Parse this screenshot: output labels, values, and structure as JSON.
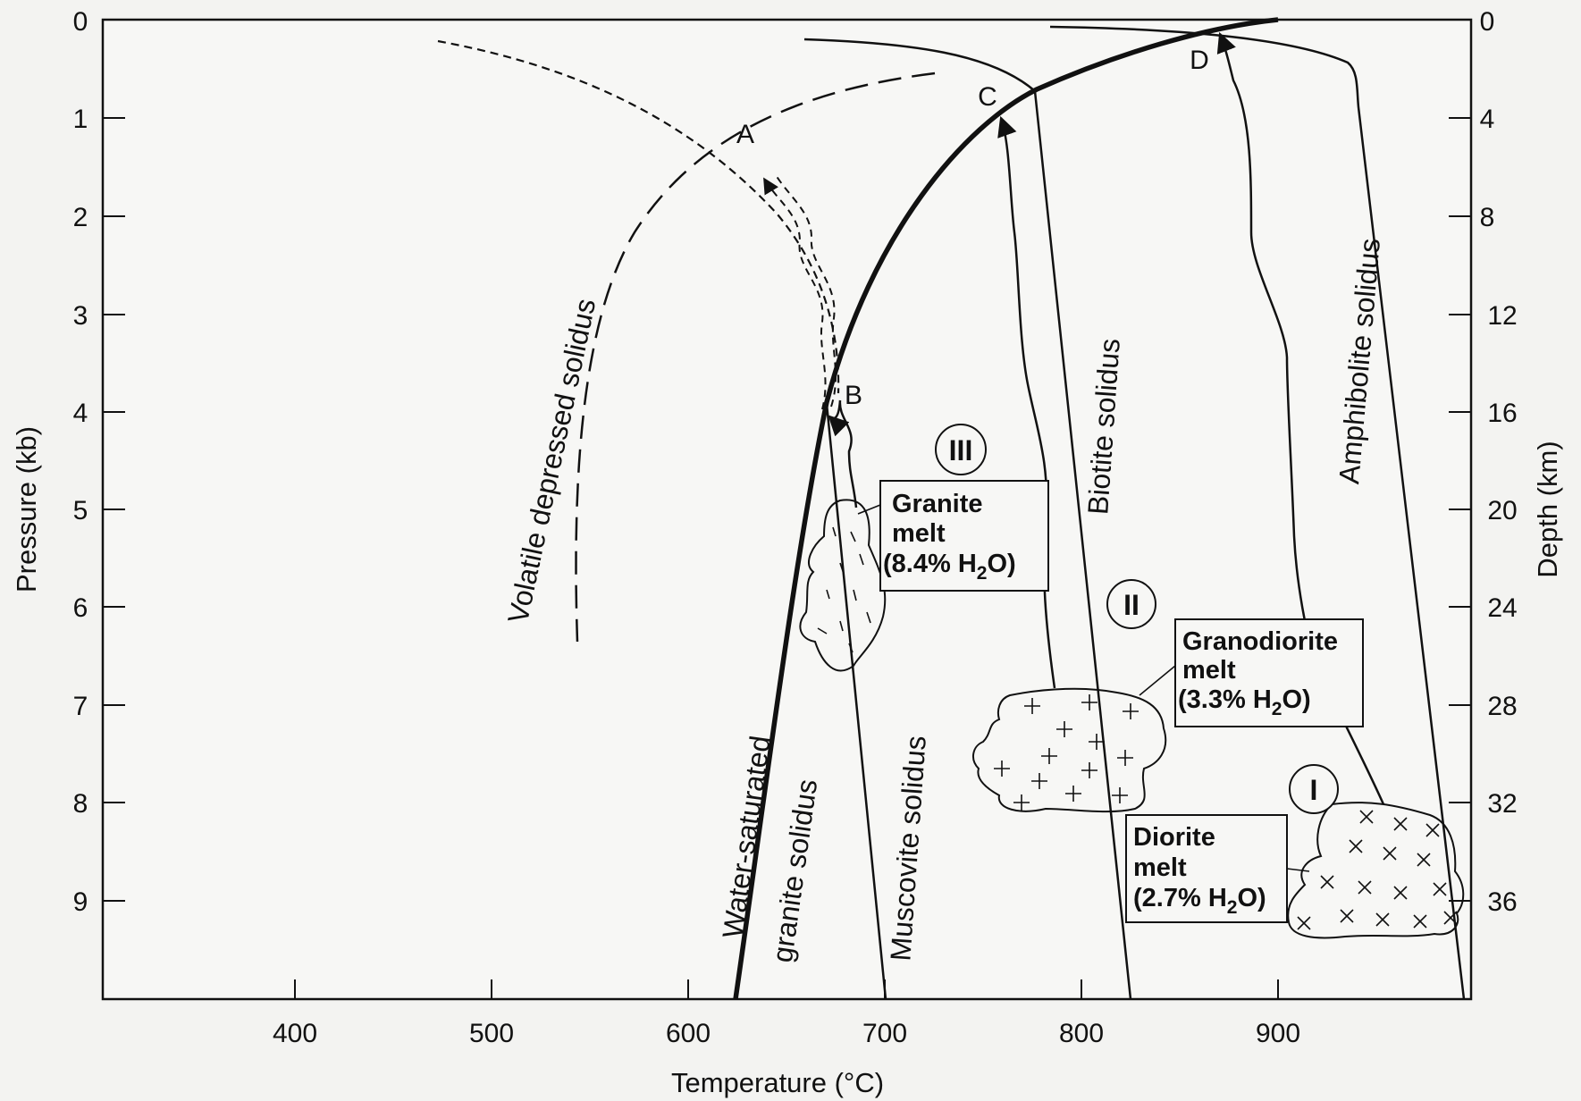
{
  "axes": {
    "xlabel": "Temperature (°C)",
    "ylabel_left": "Pressure (kb)",
    "ylabel_right": "Depth (km)",
    "x_ticks": [
      "400",
      "500",
      "600",
      "700",
      "800",
      "900"
    ],
    "y_left_ticks": [
      "0",
      "1",
      "2",
      "3",
      "4",
      "5",
      "6",
      "7",
      "8",
      "9"
    ],
    "y_right_ticks": [
      "0",
      "4",
      "8",
      "12",
      "16",
      "20",
      "24",
      "28",
      "32",
      "36"
    ]
  },
  "curve_labels": {
    "volatile_depressed": "Volatile depressed solidus",
    "water_saturated_1": "Water-saturated",
    "water_saturated_2": "granite solidus",
    "muscovite": "Muscovite solidus",
    "biotite": "Biotite solidus",
    "amphibolite": "Amphibolite solidus"
  },
  "points": {
    "a": "A",
    "b": "B",
    "c": "C",
    "d": "D"
  },
  "magmas": {
    "granite": {
      "roman": "III",
      "name": "Granite",
      "line2": "melt",
      "water_prefix": "(8.4% H",
      "water_sub": "2",
      "water_suffix": "O)"
    },
    "granodiorite": {
      "roman": "II",
      "name": "Granodiorite",
      "line2": "melt",
      "water_prefix": "(3.3% H",
      "water_sub": "2",
      "water_suffix": "O)"
    },
    "diorite": {
      "roman": "I",
      "name": "Diorite",
      "line2": "melt",
      "water_prefix": "(2.7% H",
      "water_sub": "2",
      "water_suffix": "O)"
    }
  }
}
